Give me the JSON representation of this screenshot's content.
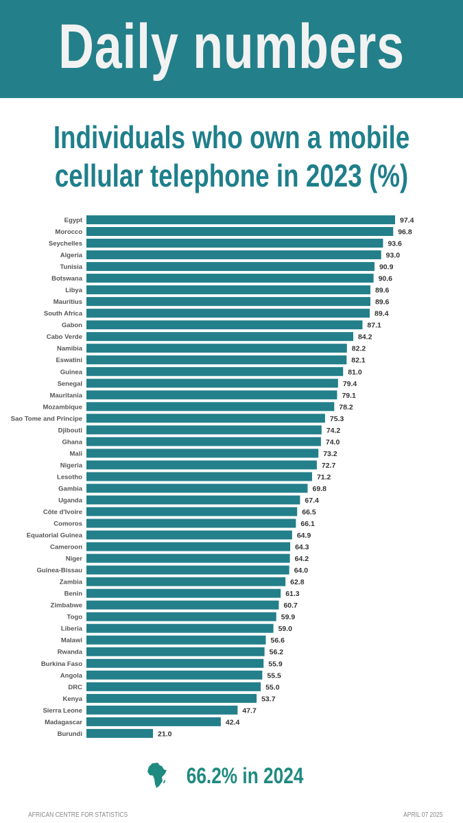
{
  "header": {
    "title": "Daily numbers"
  },
  "colors": {
    "header_bg": "#237f8a",
    "bar": "#237f8a",
    "title_text": "#1f7f8b",
    "summary_text": "#1f8a80"
  },
  "chart_data": {
    "type": "bar",
    "orientation": "horizontal",
    "title": "Individuals who own a mobile cellular telephone in 2023 (%)",
    "categories": [
      "Egypt",
      "Morocco",
      "Seychelles",
      "Algeria",
      "Tunisia",
      "Botswana",
      "Libya",
      "Mauritius",
      "South Africa",
      "Gabon",
      "Cabo Verde",
      "Namibia",
      "Eswatini",
      "Guinea",
      "Senegal",
      "Mauritania",
      "Mozambique",
      "Sao Tome and Principe",
      "Djibouti",
      "Ghana",
      "Mali",
      "Nigeria",
      "Lesotho",
      "Gambia",
      "Uganda",
      "Côte d'Ivoire",
      "Comoros",
      "Equatorial Guinea",
      "Cameroon",
      "Niger",
      "Guinea-Bissau",
      "Zambia",
      "Benin",
      "Zimbabwe",
      "Togo",
      "Liberia",
      "Malawi",
      "Rwanda",
      "Burkina Faso",
      "Angola",
      "DRC",
      "Kenya",
      "Sierra Leone",
      "Madagascar",
      "Burundi"
    ],
    "values": [
      97.4,
      96.8,
      93.6,
      93.0,
      90.9,
      90.6,
      89.6,
      89.6,
      89.4,
      87.1,
      84.2,
      82.2,
      82.1,
      81.0,
      79.4,
      79.1,
      78.2,
      75.3,
      74.2,
      74.0,
      73.2,
      72.7,
      71.2,
      69.8,
      67.4,
      66.5,
      66.1,
      64.9,
      64.3,
      64.2,
      64.0,
      62.8,
      61.3,
      60.7,
      59.9,
      59.0,
      56.6,
      56.2,
      55.9,
      55.5,
      55.0,
      53.7,
      47.7,
      42.4,
      21.0
    ],
    "value_labels": [
      "97.4",
      "96.8",
      "93.6",
      "93.0",
      "90.9",
      "90.6",
      "89.6",
      "89.6",
      "89.4",
      "87.1",
      "84.2",
      "82.2",
      "82.1",
      "81.0",
      "79.4",
      "79.1",
      "78.2",
      "75.3",
      "74.2",
      "74.0",
      "73.2",
      "72.7",
      "71.2",
      "69.8",
      "67.4",
      "66.5",
      "66.1",
      "64.9",
      "64.3",
      "64.2",
      "64.0",
      "62.8",
      "61.3",
      "60.7",
      "59.9",
      "59.0",
      "56.6",
      "56.2",
      "55.9",
      "55.5",
      "55.0",
      "53.7",
      "47.7",
      "42.4",
      "21.0"
    ],
    "x_tick_labels": [
      "0.0"
    ],
    "xlim": [
      0,
      100
    ],
    "grid": false,
    "legend": "none"
  },
  "summary": {
    "icon": "africa-map-icon",
    "text": "66.2%  in 2024"
  },
  "footer": {
    "source": "AFRICAN CENTRE FOR STATISTICS",
    "date": "APRIL 07 2025"
  }
}
